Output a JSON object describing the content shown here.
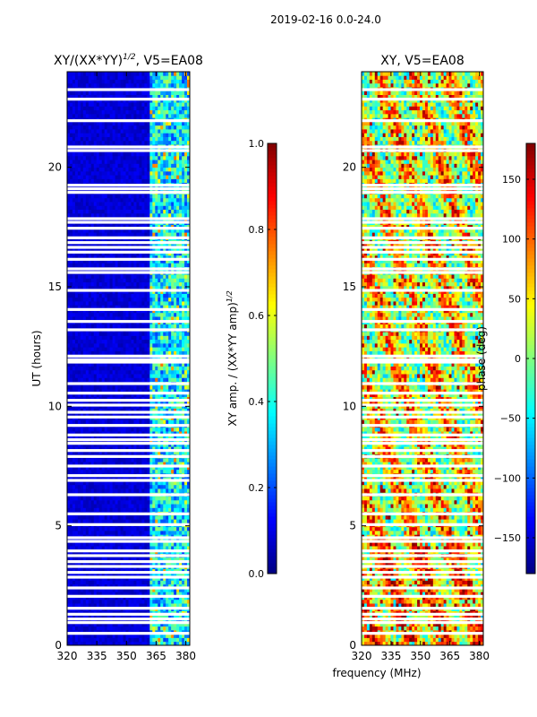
{
  "suptitle": "2019-02-16 0.0-24.0",
  "shared_xlabel": "frequency (MHz)",
  "chart_data": [
    {
      "type": "heatmap",
      "title_main": "XY/(XX*YY)",
      "title_exp": "1/2",
      "title_suffix": ", V5=EA08",
      "xlabel": "",
      "ylabel": "UT (hours)",
      "xlim": [
        320,
        382
      ],
      "ylim": [
        0,
        24
      ],
      "xticks": [
        320,
        335,
        350,
        365,
        380
      ],
      "yticks": [
        0,
        5,
        10,
        15,
        20
      ],
      "colormap": "jet",
      "colorbar": {
        "label_main": "XY amp. / (XX*YY amp)",
        "label_exp": "1/2",
        "range": [
          0.0,
          1.0
        ],
        "ticks": [
          0.0,
          0.2,
          0.4,
          0.6,
          0.8,
          1.0
        ],
        "tick_labels": [
          "0.0",
          "0.2",
          "0.4",
          "0.6",
          "0.8",
          "1.0"
        ]
      },
      "features": "mostly low amplitude (~0.05) below 362 MHz; higher amplitude (0.2-0.7) in 362-382 MHz band"
    },
    {
      "type": "heatmap",
      "title_main": "XY, V5=EA08",
      "xlabel": "",
      "ylabel": "",
      "xlim": [
        320,
        382
      ],
      "ylim": [
        0,
        24
      ],
      "xticks": [
        320,
        335,
        350,
        365,
        380
      ],
      "yticks": [
        0,
        5,
        10,
        15,
        20
      ],
      "colormap": "jet",
      "colorbar": {
        "label_main": "phase (deg)",
        "range": [
          -180,
          180
        ],
        "ticks": [
          -150,
          -100,
          -50,
          0,
          50,
          100,
          150
        ],
        "tick_labels": [
          "−150",
          "−100",
          "−50",
          "0",
          "50",
          "100",
          "150"
        ]
      },
      "features": "phase mostly 50-150 deg with noisy structure; flagged rows shown white"
    }
  ],
  "flagged_ut_hours": [
    0.5,
    0.95,
    1.1,
    1.3,
    1.55,
    2.05,
    2.4,
    2.85,
    3.05,
    3.3,
    3.5,
    3.75,
    3.95,
    4.35,
    4.5,
    5.05,
    5.5,
    6.3,
    6.9,
    7.1,
    7.5,
    7.9,
    8.15,
    8.45,
    8.6,
    8.8,
    9.2,
    9.55,
    9.75,
    10.05,
    10.25,
    10.55,
    10.95,
    11.85,
    11.95,
    12.1,
    13.2,
    13.55,
    14.05,
    14.85,
    15.6,
    15.75,
    16.15,
    16.45,
    16.65,
    16.85,
    17.05,
    17.45,
    17.7,
    17.85,
    18.95,
    19.1,
    19.25,
    20.7,
    20.85,
    21.95,
    22.85,
    23.25
  ]
}
